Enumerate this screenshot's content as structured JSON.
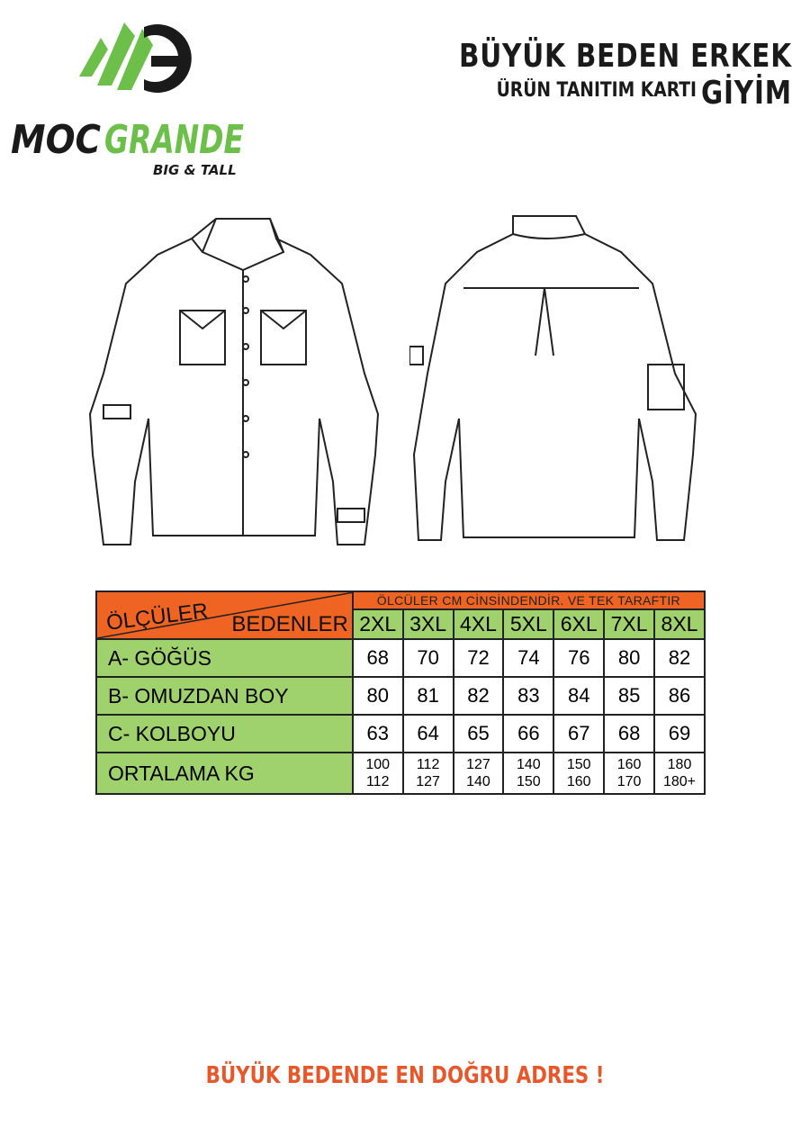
{
  "brand": {
    "name_part1": "MOC",
    "name_part2": "GRANDE",
    "tagline": "BIG & TALL",
    "colors": {
      "green": "#6cc04a",
      "black": "#1a1a1a"
    }
  },
  "header": {
    "title": "BÜYÜK BEDEN ERKEK GİYİM",
    "subtitle": "ÜRÜN TANITIM KARTI"
  },
  "table": {
    "corner_top": "ÖLÇÜLER",
    "corner_bottom": "BEDENLER",
    "note": "ÖLCÜLER CM CİNSİNDENDİR. VE TEK TARAFTIR",
    "sizes": [
      "2XL",
      "3XL",
      "4XL",
      "5XL",
      "6XL",
      "7XL",
      "8XL"
    ],
    "rows": [
      {
        "label": "A- GÖĞÜS",
        "values": [
          "68",
          "70",
          "72",
          "74",
          "76",
          "80",
          "82"
        ]
      },
      {
        "label": "B- OMUZDAN BOY",
        "values": [
          "80",
          "81",
          "82",
          "83",
          "84",
          "85",
          "86"
        ]
      },
      {
        "label": "C- KOLBOYU",
        "values": [
          "63",
          "64",
          "65",
          "66",
          "67",
          "68",
          "69"
        ]
      }
    ],
    "kg_row": {
      "label": "ORTALAMA KG",
      "values": [
        [
          "100",
          "112"
        ],
        [
          "112",
          "127"
        ],
        [
          "127",
          "140"
        ],
        [
          "140",
          "150"
        ],
        [
          "150",
          "160"
        ],
        [
          "160",
          "170"
        ],
        [
          "180",
          "180+"
        ]
      ]
    },
    "colors": {
      "header": "#ef6423",
      "label": "#9fd26d"
    }
  },
  "footer": {
    "slogan": "BÜYÜK BEDENDE EN DOĞRU ADRES !"
  }
}
